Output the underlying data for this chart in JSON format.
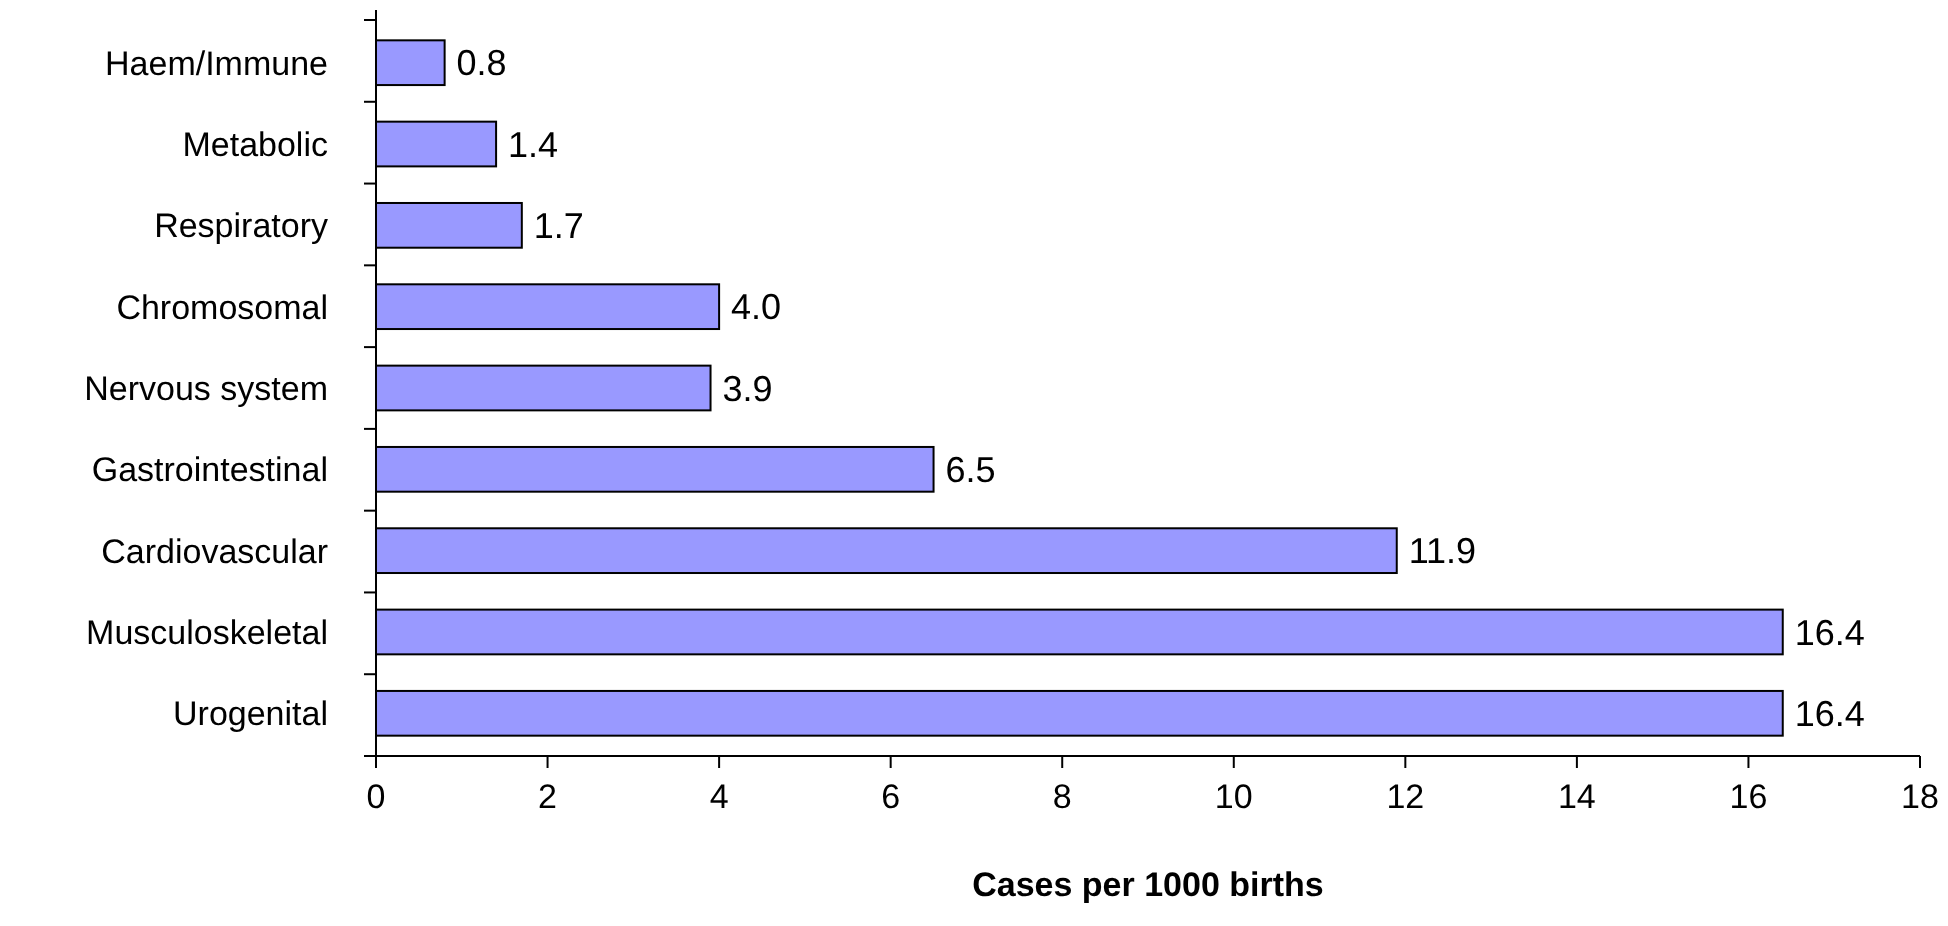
{
  "chart_data": {
    "type": "bar",
    "orientation": "horizontal",
    "xlabel": "Cases per 1000 births",
    "categories": [
      "Haem/Immune",
      "Metabolic",
      "Respiratory",
      "Chromosomal",
      "Nervous system",
      "Gastrointestinal",
      "Cardiovascular",
      "Musculoskeletal",
      "Urogenital"
    ],
    "values": [
      0.8,
      1.4,
      1.7,
      4.0,
      3.9,
      6.5,
      11.9,
      16.4,
      16.4
    ],
    "value_labels": [
      "0.8",
      "1.4",
      "1.7",
      "4.0",
      "3.9",
      "6.5",
      "11.9",
      "16.4",
      "16.4"
    ],
    "color": "#9999ff",
    "xlim": [
      0,
      18
    ],
    "xticks": [
      0,
      2,
      4,
      6,
      8,
      10,
      12,
      14,
      16,
      18
    ]
  }
}
